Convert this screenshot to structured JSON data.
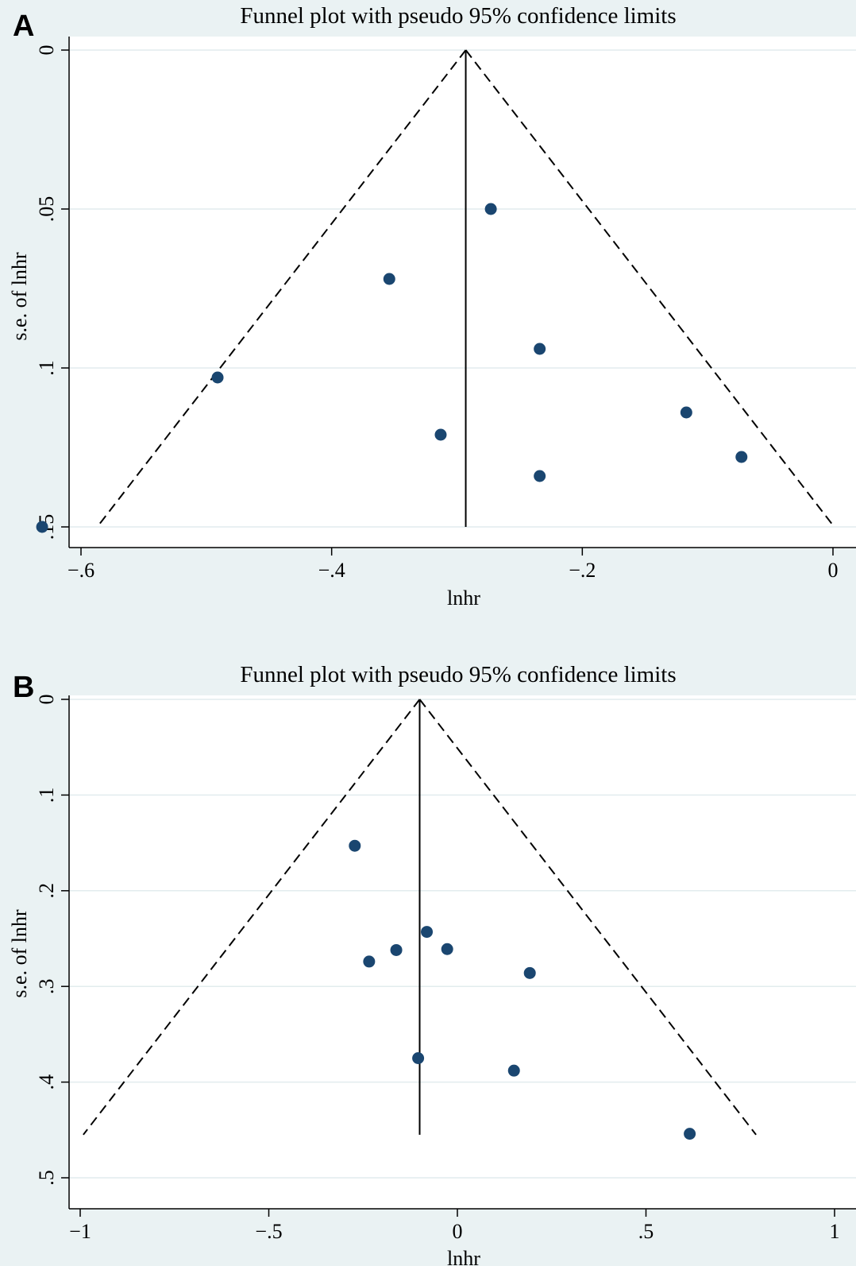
{
  "chart_data": [
    {
      "type": "scatter",
      "panel_label": "A",
      "title": "Funnel plot with pseudo 95% confidence limits",
      "xlabel": "lnhr",
      "ylabel": "s.e. of lnhr",
      "xlim": [
        -0.665,
        0.003
      ],
      "ylim": [
        0,
        0.154
      ],
      "y_reversed": true,
      "grid": "horizontal",
      "xticks": [
        -0.6,
        -0.4,
        -0.2,
        0
      ],
      "xtick_labels": [
        "−.6",
        "−.4",
        "−.2",
        "0"
      ],
      "yticks": [
        0,
        0.05,
        0.1,
        0.15
      ],
      "ytick_labels": [
        "0",
        ".05",
        ".1",
        ".15"
      ],
      "pooled_estimate": -0.293,
      "se_max": 0.15,
      "points": [
        {
          "x": -0.273,
          "y": 0.05
        },
        {
          "x": -0.354,
          "y": 0.072
        },
        {
          "x": -0.234,
          "y": 0.094
        },
        {
          "x": -0.491,
          "y": 0.103
        },
        {
          "x": -0.117,
          "y": 0.114
        },
        {
          "x": -0.313,
          "y": 0.121
        },
        {
          "x": -0.073,
          "y": 0.128
        },
        {
          "x": -0.234,
          "y": 0.134
        },
        {
          "x": -0.631,
          "y": 0.15
        }
      ]
    },
    {
      "type": "scatter",
      "panel_label": "B",
      "title": "Funnel plot with pseudo 95% confidence limits",
      "xlabel": "lnhr",
      "ylabel": "s.e. of lnhr",
      "xlim": [
        -1.005,
        1.005
      ],
      "ylim": [
        0,
        0.515
      ],
      "y_reversed": true,
      "grid": "horizontal",
      "xticks": [
        -1,
        -0.5,
        0,
        0.5,
        1
      ],
      "xtick_labels": [
        "−1",
        "−.5",
        "0",
        ".5",
        "1"
      ],
      "yticks": [
        0,
        0.1,
        0.2,
        0.3,
        0.4,
        0.5
      ],
      "ytick_labels": [
        "0",
        ".1",
        ".2",
        ".3",
        ".4",
        ".5"
      ],
      "pooled_estimate": -0.1,
      "se_max": 0.455,
      "points": [
        {
          "x": -0.272,
          "y": 0.153
        },
        {
          "x": -0.081,
          "y": 0.243
        },
        {
          "x": -0.162,
          "y": 0.262
        },
        {
          "x": -0.027,
          "y": 0.261
        },
        {
          "x": -0.234,
          "y": 0.274
        },
        {
          "x": 0.192,
          "y": 0.286
        },
        {
          "x": -0.104,
          "y": 0.375
        },
        {
          "x": 0.15,
          "y": 0.388
        },
        {
          "x": 0.616,
          "y": 0.454
        }
      ]
    }
  ]
}
